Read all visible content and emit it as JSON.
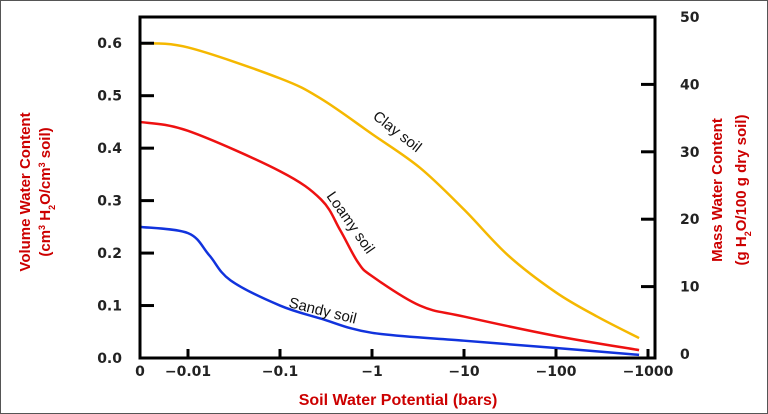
{
  "chart_data": {
    "type": "line",
    "xlabel": "Soil Water Potential (bars)",
    "ylabel": "Volume Water Content",
    "ylabel_units": [
      "(cm",
      "3",
      " H",
      "2",
      "O/cm",
      "3",
      " soil)"
    ],
    "y2label": "Mass Water Content",
    "y2label_units": [
      "(g H",
      "2",
      "O/100 g dry soil)"
    ],
    "x_scale": "log (with 0 at origin)",
    "x_ticks": [
      0,
      -0.01,
      -0.1,
      -1,
      -10,
      -100,
      -1000
    ],
    "x_tick_labels": [
      "0",
      "−0.01",
      "−0.1",
      "−1",
      "−10",
      "−100",
      "−1000"
    ],
    "ylim": [
      0,
      0.65
    ],
    "y_ticks": [
      0.0,
      0.1,
      0.2,
      0.3,
      0.4,
      0.5,
      0.6
    ],
    "y_tick_labels": [
      "0.0",
      "0.1",
      "0.2",
      "0.3",
      "0.4",
      "0.5",
      "0.6"
    ],
    "y2lim": [
      0,
      50
    ],
    "y2_ticks": [
      0,
      10,
      20,
      30,
      40,
      50
    ],
    "y2_tick_labels": [
      "0",
      "10",
      "20",
      "30",
      "40",
      "50"
    ],
    "grid": false,
    "legend": "none (inline curve labels)",
    "series": [
      {
        "name": "Clay soil",
        "color": "#f5b800",
        "x": [
          0,
          -0.01,
          -0.1,
          -0.28,
          -1,
          -3.3,
          -10,
          -30,
          -100,
          -280,
          -800
        ],
        "y": [
          0.6,
          0.592,
          0.533,
          0.494,
          0.427,
          0.363,
          0.283,
          0.196,
          0.125,
          0.079,
          0.038
        ]
      },
      {
        "name": "Loamy soil",
        "color": "#ee1111",
        "x": [
          0,
          -0.01,
          -0.1,
          -0.28,
          -0.45,
          -0.7,
          -1,
          -3.3,
          -10,
          -100,
          -800
        ],
        "y": [
          0.45,
          0.433,
          0.356,
          0.302,
          0.244,
          0.183,
          0.156,
          0.1,
          0.079,
          0.042,
          0.015
        ]
      },
      {
        "name": "Sandy soil",
        "color": "#1133dd",
        "x": [
          0,
          -0.01,
          -0.017,
          -0.029,
          -0.1,
          -0.28,
          -1,
          -10,
          -100,
          -800
        ],
        "y": [
          0.25,
          0.238,
          0.196,
          0.148,
          0.1,
          0.075,
          0.048,
          0.033,
          0.019,
          0.006
        ]
      }
    ]
  }
}
